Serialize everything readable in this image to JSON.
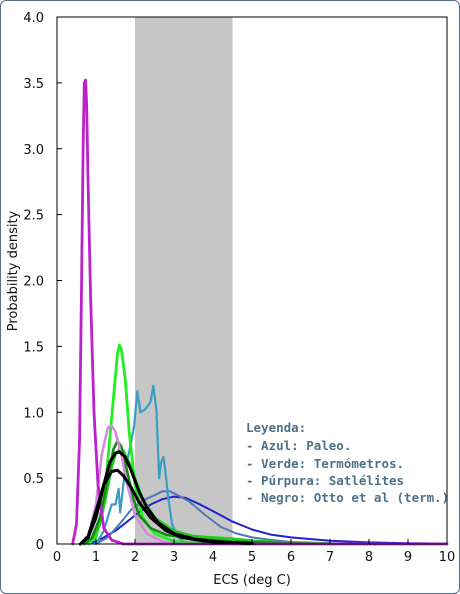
{
  "chart_data": {
    "type": "line",
    "xlabel": "ECS (deg C)",
    "ylabel": "Probability density",
    "xlim": [
      0,
      10
    ],
    "ylim": [
      0,
      4.0
    ],
    "xticks": [
      0,
      1,
      2,
      3,
      4,
      5,
      6,
      7,
      8,
      9,
      10
    ],
    "yticks": [
      0.0,
      0.5,
      1.0,
      1.5,
      2.0,
      2.5,
      3.0,
      3.5,
      4.0
    ],
    "ytick_labels": [
      "0",
      "0.5",
      "1.0",
      "1.5",
      "2.0",
      "2.5",
      "3.0",
      "3.5",
      "4.0"
    ],
    "grid": false,
    "shaded_band": {
      "x0": 2.0,
      "x1": 4.5,
      "color": "#c6c6c6"
    },
    "legend_title": "Leyenda:",
    "legend_lines": [
      "- Azul: Paleo.",
      "- Verde: Termómetros.",
      "- Púrpura: Satlélites",
      "- Negro: Otto et al (term.)"
    ],
    "legend_placement": "lower-right",
    "colors": {
      "blue_dark": "#2222cc",
      "blue_mid": "#4f79b8",
      "blue_cyan": "#3a9ec4",
      "green_bright": "#22ee22",
      "green_mid": "#22cc22",
      "green_dark": "#138a13",
      "purple_dark": "#bb22cc",
      "purple_light": "#d08ed8",
      "black": "#000000",
      "band": "#c6c6c6"
    },
    "series": [
      {
        "color": "#2222cc",
        "width": 2.0,
        "points": [
          [
            0.8,
            0
          ],
          [
            1.0,
            0.02
          ],
          [
            1.2,
            0.05
          ],
          [
            1.5,
            0.1
          ],
          [
            1.8,
            0.17
          ],
          [
            2.1,
            0.24
          ],
          [
            2.4,
            0.3
          ],
          [
            2.7,
            0.34
          ],
          [
            3.0,
            0.36
          ],
          [
            3.3,
            0.35
          ],
          [
            3.6,
            0.31
          ],
          [
            4.0,
            0.25
          ],
          [
            4.5,
            0.17
          ],
          [
            5.0,
            0.11
          ],
          [
            5.5,
            0.07
          ],
          [
            6.0,
            0.05
          ],
          [
            7.0,
            0.025
          ],
          [
            8.0,
            0.012
          ],
          [
            9.0,
            0.006
          ],
          [
            10.0,
            0.003
          ]
        ]
      },
      {
        "color": "#4f79b8",
        "width": 2.0,
        "points": [
          [
            1.0,
            0
          ],
          [
            1.3,
            0.05
          ],
          [
            1.6,
            0.15
          ],
          [
            1.9,
            0.26
          ],
          [
            2.2,
            0.33
          ],
          [
            2.5,
            0.37
          ],
          [
            2.7,
            0.4
          ],
          [
            2.9,
            0.4
          ],
          [
            3.1,
            0.37
          ],
          [
            3.4,
            0.32
          ],
          [
            3.8,
            0.22
          ],
          [
            4.2,
            0.13
          ],
          [
            4.6,
            0.08
          ],
          [
            5.0,
            0.05
          ],
          [
            5.5,
            0.03
          ],
          [
            6.0,
            0.015
          ],
          [
            7.0,
            0.005
          ],
          [
            8.0,
            0.002
          ]
        ]
      },
      {
        "color": "#3a9ec4",
        "width": 2.2,
        "points": [
          [
            1.0,
            0
          ],
          [
            1.2,
            0.1
          ],
          [
            1.4,
            0.3
          ],
          [
            1.5,
            0.3
          ],
          [
            1.58,
            0.42
          ],
          [
            1.62,
            0.24
          ],
          [
            1.72,
            0.5
          ],
          [
            1.85,
            0.7
          ],
          [
            1.98,
            0.9
          ],
          [
            2.06,
            1.16
          ],
          [
            2.14,
            1.0
          ],
          [
            2.25,
            1.02
          ],
          [
            2.33,
            1.05
          ],
          [
            2.4,
            1.08
          ],
          [
            2.47,
            1.2
          ],
          [
            2.55,
            1.02
          ],
          [
            2.62,
            0.5
          ],
          [
            2.67,
            0.62
          ],
          [
            2.73,
            0.66
          ],
          [
            2.78,
            0.55
          ],
          [
            2.85,
            0.35
          ],
          [
            2.95,
            0.15
          ],
          [
            3.1,
            0.05
          ],
          [
            3.3,
            0.01
          ],
          [
            3.5,
            0
          ]
        ]
      },
      {
        "color": "#22ee22",
        "width": 2.8,
        "points": [
          [
            0.8,
            0
          ],
          [
            1.0,
            0.05
          ],
          [
            1.2,
            0.3
          ],
          [
            1.4,
            0.95
          ],
          [
            1.55,
            1.45
          ],
          [
            1.6,
            1.51
          ],
          [
            1.65,
            1.48
          ],
          [
            1.75,
            1.25
          ],
          [
            1.85,
            0.85
          ],
          [
            2.0,
            0.45
          ],
          [
            2.2,
            0.2
          ],
          [
            2.5,
            0.08
          ],
          [
            3.0,
            0.02
          ],
          [
            4.0,
            0.003
          ]
        ]
      },
      {
        "color": "#22cc22",
        "width": 2.6,
        "points": [
          [
            0.7,
            0
          ],
          [
            0.9,
            0.04
          ],
          [
            1.1,
            0.15
          ],
          [
            1.25,
            0.35
          ],
          [
            1.4,
            0.58
          ],
          [
            1.5,
            0.68
          ],
          [
            1.6,
            0.72
          ],
          [
            1.7,
            0.71
          ],
          [
            1.85,
            0.62
          ],
          [
            2.0,
            0.5
          ],
          [
            2.2,
            0.34
          ],
          [
            2.5,
            0.2
          ],
          [
            3.0,
            0.1
          ],
          [
            3.5,
            0.06
          ],
          [
            4.0,
            0.05
          ],
          [
            4.5,
            0.04
          ],
          [
            5.0,
            0.025
          ],
          [
            6.0,
            0.01
          ],
          [
            7.0,
            0.004
          ]
        ]
      },
      {
        "color": "#138a13",
        "width": 2.6,
        "points": [
          [
            0.7,
            0
          ],
          [
            0.9,
            0.05
          ],
          [
            1.1,
            0.2
          ],
          [
            1.3,
            0.5
          ],
          [
            1.45,
            0.72
          ],
          [
            1.55,
            0.78
          ],
          [
            1.65,
            0.74
          ],
          [
            1.8,
            0.55
          ],
          [
            1.95,
            0.35
          ],
          [
            2.1,
            0.22
          ],
          [
            2.4,
            0.12
          ],
          [
            2.8,
            0.07
          ],
          [
            3.5,
            0.04
          ],
          [
            4.5,
            0.02
          ],
          [
            5.5,
            0.008
          ],
          [
            6.5,
            0.003
          ]
        ]
      },
      {
        "color": "#d08ed8",
        "width": 2.6,
        "points": [
          [
            0.6,
            0
          ],
          [
            0.8,
            0.05
          ],
          [
            1.0,
            0.3
          ],
          [
            1.15,
            0.68
          ],
          [
            1.3,
            0.88
          ],
          [
            1.4,
            0.9
          ],
          [
            1.5,
            0.85
          ],
          [
            1.65,
            0.68
          ],
          [
            1.8,
            0.45
          ],
          [
            2.0,
            0.22
          ],
          [
            2.3,
            0.08
          ],
          [
            2.7,
            0.02
          ],
          [
            3.0,
            0
          ]
        ]
      },
      {
        "color": "#bb22cc",
        "width": 2.8,
        "points": [
          [
            0.4,
            0
          ],
          [
            0.5,
            0.15
          ],
          [
            0.58,
            0.8
          ],
          [
            0.63,
            2.0
          ],
          [
            0.67,
            3.0
          ],
          [
            0.7,
            3.5
          ],
          [
            0.73,
            3.52
          ],
          [
            0.76,
            3.35
          ],
          [
            0.8,
            2.7
          ],
          [
            0.86,
            1.9
          ],
          [
            0.95,
            1.0
          ],
          [
            1.05,
            0.45
          ],
          [
            1.2,
            0.12
          ],
          [
            1.4,
            0.03
          ],
          [
            1.7,
            0
          ],
          [
            3.0,
            0
          ],
          [
            6.0,
            0
          ],
          [
            10.0,
            0
          ]
        ]
      },
      {
        "color": "#000000",
        "width": 3.0,
        "points": [
          [
            0.6,
            0
          ],
          [
            0.8,
            0.05
          ],
          [
            1.0,
            0.2
          ],
          [
            1.2,
            0.45
          ],
          [
            1.35,
            0.62
          ],
          [
            1.5,
            0.69
          ],
          [
            1.6,
            0.7
          ],
          [
            1.75,
            0.66
          ],
          [
            1.9,
            0.56
          ],
          [
            2.1,
            0.4
          ],
          [
            2.3,
            0.28
          ],
          [
            2.6,
            0.16
          ],
          [
            3.0,
            0.08
          ],
          [
            3.5,
            0.04
          ],
          [
            4.0,
            0.02
          ],
          [
            4.5,
            0.01
          ],
          [
            5.0,
            0.004
          ]
        ]
      },
      {
        "color": "#000000",
        "width": 3.0,
        "points": [
          [
            0.6,
            0
          ],
          [
            0.8,
            0.06
          ],
          [
            1.0,
            0.25
          ],
          [
            1.2,
            0.45
          ],
          [
            1.4,
            0.55
          ],
          [
            1.55,
            0.56
          ],
          [
            1.7,
            0.52
          ],
          [
            1.9,
            0.43
          ],
          [
            2.1,
            0.32
          ],
          [
            2.4,
            0.2
          ],
          [
            2.8,
            0.1
          ],
          [
            3.2,
            0.05
          ],
          [
            3.7,
            0.025
          ],
          [
            4.2,
            0.012
          ],
          [
            5.0,
            0.004
          ]
        ]
      }
    ]
  }
}
